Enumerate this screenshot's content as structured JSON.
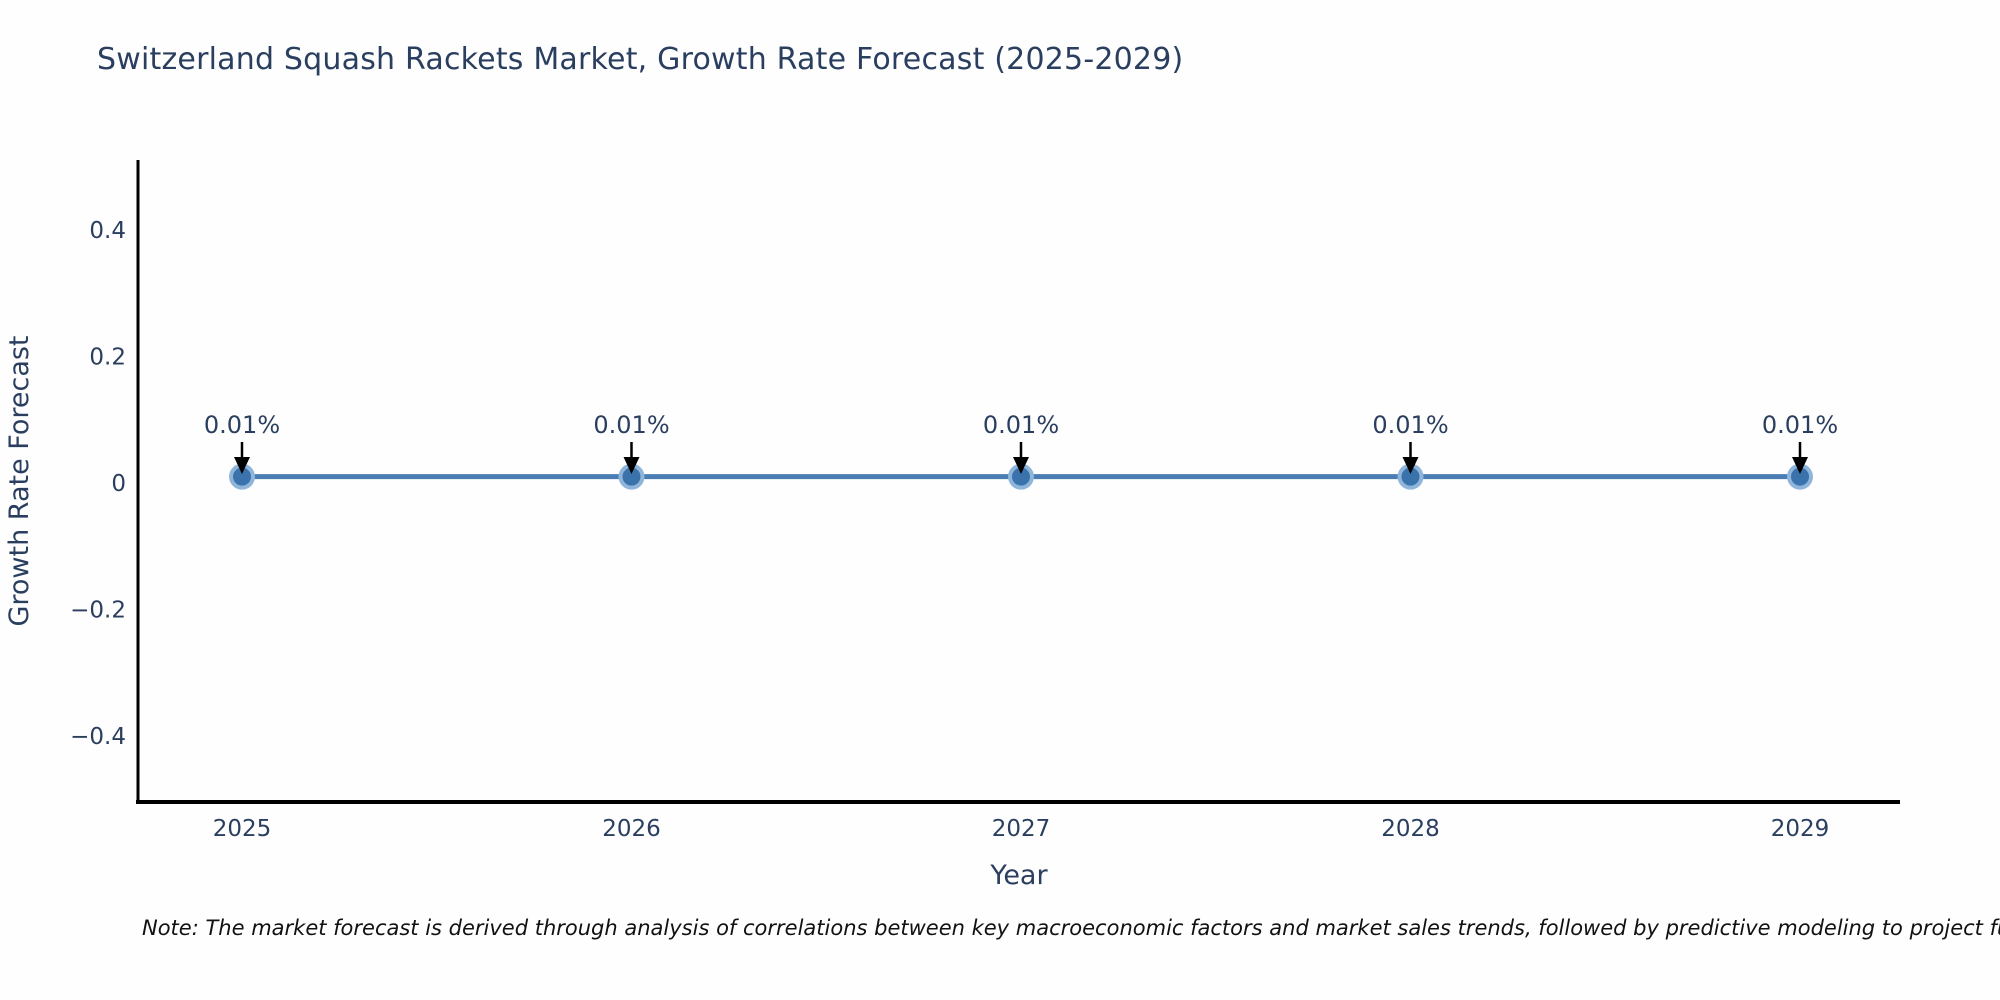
{
  "page": {
    "background": "#fefefe"
  },
  "chart_data": {
    "type": "line",
    "title": "Switzerland Squash Rackets Market, Growth Rate Forecast (2025-2029)",
    "xlabel": "Year",
    "ylabel": "Growth Rate Forecast",
    "x": [
      "2025",
      "2026",
      "2027",
      "2028",
      "2029"
    ],
    "series": [
      {
        "name": "Growth Rate Forecast",
        "values": [
          0.01,
          0.01,
          0.01,
          0.01,
          0.01
        ]
      }
    ],
    "point_labels": [
      "0.01%",
      "0.01%",
      "0.01%",
      "0.01%",
      "0.01%"
    ],
    "yticks": [
      0.4,
      0.2,
      0,
      -0.2,
      -0.4
    ],
    "ytick_labels": [
      "0.4",
      "0.2",
      "0",
      "−0.2",
      "−0.4"
    ],
    "ylim": [
      -0.51,
      0.51
    ],
    "grid": false,
    "legend": "none",
    "annotations": "each point has a black downward arrow with label above",
    "line_color": "#4a7db3",
    "marker_color": "#3a72ac",
    "marker_ring_color": "#8fb6da",
    "axis_color": "#000000",
    "text_color": "#2a3f5f",
    "annotation_text_color": "#2a3f5f",
    "annotation_arrow_color": "#000000"
  },
  "note": {
    "text": "Note: The market forecast is derived through analysis of correlations between key macroeconomic factors and market sales trends, followed by predictive modeling to project future sales."
  }
}
